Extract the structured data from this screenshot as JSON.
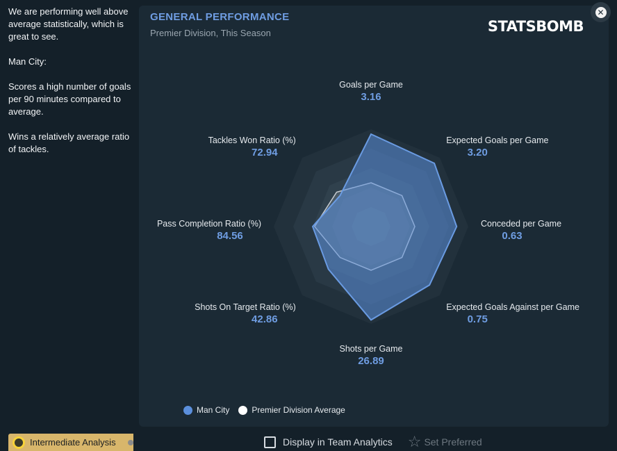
{
  "sidebar": {
    "insight_paragraphs": [
      "We are performing well above average statistically, which is great to see.",
      "Man City:",
      "Scores a high number of goals per 90 minutes compared to average.",
      "Wins a relatively average ratio of tackles."
    ],
    "analysis_label": "Intermediate Analysis"
  },
  "panel": {
    "title": "GENERAL PERFORMANCE",
    "subtitle": "Premier Division, This Season",
    "logo_text": "STATSBOMB",
    "close_icon": "close-icon",
    "close_glyph": "✕"
  },
  "chart_data": {
    "type": "radar",
    "axes": [
      {
        "label": "Goals per Game",
        "value": "3.16",
        "man_city": 0.95,
        "average": 0.45
      },
      {
        "label": "Expected Goals per Game",
        "value": "3.20",
        "man_city": 0.92,
        "average": 0.45
      },
      {
        "label": "Conceded per Game",
        "value": "0.63",
        "man_city": 0.88,
        "average": 0.45
      },
      {
        "label": "Expected Goals Against per Game",
        "value": "0.75",
        "man_city": 0.85,
        "average": 0.45
      },
      {
        "label": "Shots per Game",
        "value": "26.89",
        "man_city": 0.96,
        "average": 0.45
      },
      {
        "label": "Shots On Target Ratio (%)",
        "value": "42.86",
        "man_city": 0.62,
        "average": 0.45
      },
      {
        "label": "Pass Completion Ratio (%)",
        "value": "84.56",
        "man_city": 0.6,
        "average": 0.58
      },
      {
        "label": "Tackles Won Ratio (%)",
        "value": "72.94",
        "man_city": 0.45,
        "average": 0.5
      }
    ],
    "series": [
      {
        "name": "Man City",
        "color": "#5b8fdc"
      },
      {
        "name": "Premier Division Average",
        "color": "#ffffff"
      }
    ]
  },
  "footer": {
    "display_label": "Display in Team Analytics",
    "preferred_label": "Set Preferred",
    "star_icon": "star-icon",
    "star_glyph": "☆"
  }
}
